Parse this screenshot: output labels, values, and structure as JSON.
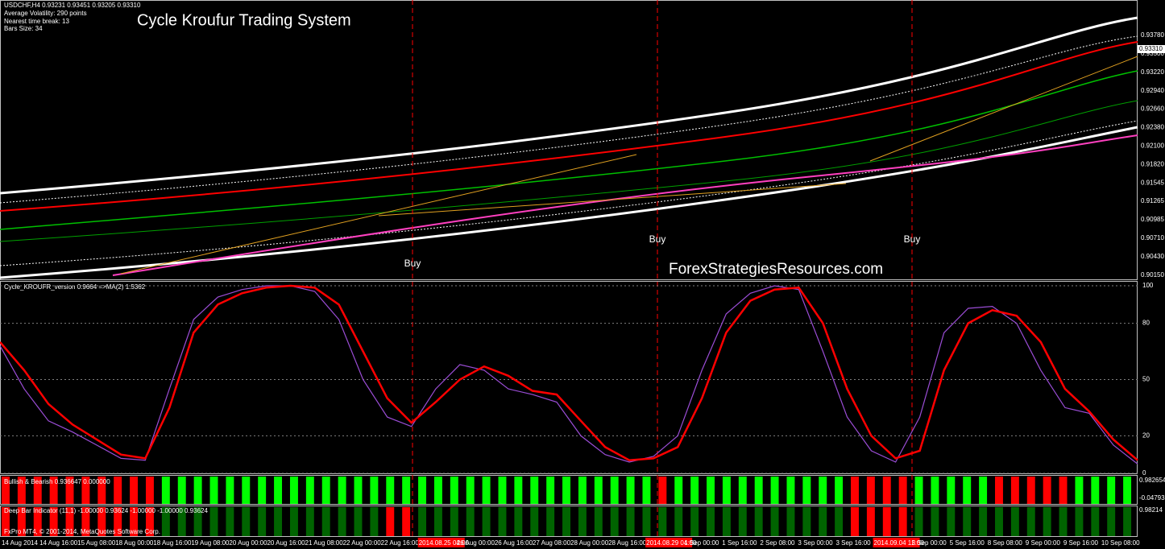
{
  "header": {
    "symbol": "USDCHF,H4  0.93231  0.93451  0.93205  0.93310",
    "info_lines": [
      "Average Volatility: 290 points",
      "Nearest time break: 13",
      "Bars Size: 34"
    ],
    "title": "Cycle Kroufur Trading System",
    "watermark": "ForexStrategiesResources.com",
    "signals": [
      "Buy",
      "Buy",
      "Buy"
    ]
  },
  "price_axis": {
    "labels": [
      "0.93780",
      "0.93500",
      "0.93220",
      "0.92940",
      "0.92660",
      "0.92380",
      "0.92100",
      "0.91820",
      "0.91545",
      "0.91265",
      "0.90985",
      "0.90710",
      "0.90430",
      "0.90150"
    ],
    "current": "0.93310"
  },
  "chart_data": {
    "type": "line",
    "title": "Cycle_KROUFR_version 0.9664  =>MA(2) 1.5362",
    "ylim": [
      0,
      100
    ],
    "yticks": [
      100,
      80,
      50,
      20,
      0
    ],
    "grid": true,
    "series": [
      {
        "color": "#9b4dd6",
        "values": [
          68,
          45,
          28,
          22,
          15,
          8,
          7,
          45,
          82,
          94,
          98,
          100,
          100,
          97,
          82,
          50,
          30,
          25,
          45,
          58,
          55,
          45,
          42,
          38,
          20,
          10,
          6,
          9,
          20,
          55,
          85,
          96,
          100,
          98,
          65,
          30,
          12,
          6,
          30,
          75,
          88,
          89,
          80,
          55,
          35,
          32,
          15,
          5
        ]
      },
      {
        "color": "#ff0000",
        "values": [
          70,
          55,
          37,
          26,
          18,
          10,
          8,
          35,
          75,
          90,
          96,
          99,
          100,
          99,
          90,
          65,
          40,
          27,
          38,
          50,
          57,
          52,
          44,
          42,
          28,
          14,
          7,
          8,
          14,
          40,
          75,
          92,
          98,
          99,
          80,
          45,
          20,
          8,
          12,
          55,
          80,
          87,
          84,
          70,
          45,
          33,
          18,
          7
        ]
      }
    ]
  },
  "bull_bear": {
    "label": "Bullish & Bearish 0.936647 0.000000",
    "axis": [
      "0.982654",
      "-0.04793"
    ],
    "bars": [
      "#ff0000",
      "#ff0000",
      "#ff0000",
      "#ff0000",
      "#ff0000",
      "#ff0000",
      "#ff0000",
      "#ff0000",
      "#ff0000",
      "#ff0000",
      "#00ff00",
      "#00ff00",
      "#00ff00",
      "#00ff00",
      "#00ff00",
      "#00ff00",
      "#00ff00",
      "#00ff00",
      "#00ff00",
      "#00ff00",
      "#00ff00",
      "#00ff00",
      "#00ff00",
      "#00ff00",
      "#00ff00",
      "#00ff00",
      "#00ff00",
      "#00ff00",
      "#00ff00",
      "#00ff00",
      "#00ff00",
      "#00ff00",
      "#00ff00",
      "#00ff00",
      "#00ff00",
      "#00ff00",
      "#00ff00",
      "#00ff00",
      "#00ff00",
      "#00ff00",
      "#00ff00",
      "#ff0000",
      "#00ff00",
      "#00ff00",
      "#00ff00",
      "#00ff00",
      "#00ff00",
      "#00ff00",
      "#00ff00",
      "#00ff00",
      "#00ff00",
      "#00ff00",
      "#00ff00",
      "#ff0000",
      "#ff0000",
      "#ff0000",
      "#ff0000",
      "#00ff00",
      "#00ff00",
      "#00ff00",
      "#00ff00",
      "#00ff00",
      "#ff0000",
      "#ff0000",
      "#ff0000",
      "#ff0000",
      "#ff0000",
      "#00ff00",
      "#00ff00",
      "#00ff00",
      "#00ff00"
    ]
  },
  "deep_bar": {
    "label": "Deep Bar Indicator (11,1) -1.00000 0.93624 -1.00000 -1.00000 0.93624",
    "axis": [
      "0.98214"
    ],
    "bars": [
      "#ff0000",
      "#ff0000",
      "#ff0000",
      "#ff0000",
      "#ff0000",
      "#ff0000",
      "#ff0000",
      "#ff0000",
      "#ff0000",
      "#ff0000",
      "#006400",
      "#006400",
      "#006400",
      "#006400",
      "#006400",
      "#006400",
      "#006400",
      "#006400",
      "#006400",
      "#006400",
      "#006400",
      "#006400",
      "#006400",
      "#006400",
      "#ff0000",
      "#ff0000",
      "#006400",
      "#006400",
      "#006400",
      "#006400",
      "#006400",
      "#006400",
      "#006400",
      "#006400",
      "#006400",
      "#006400",
      "#006400",
      "#006400",
      "#006400",
      "#006400",
      "#006400",
      "#006400",
      "#006400",
      "#006400",
      "#006400",
      "#006400",
      "#006400",
      "#006400",
      "#006400",
      "#006400",
      "#006400",
      "#006400",
      "#006400",
      "#ff0000",
      "#ff0000",
      "#ff0000",
      "#ff0000",
      "#006400",
      "#006400",
      "#006400",
      "#006400",
      "#006400",
      "#006400",
      "#006400",
      "#006400",
      "#006400",
      "#006400",
      "#006400",
      "#006400",
      "#006400",
      "#006400"
    ]
  },
  "footer": {
    "copyright": "FxPro MT4, © 2001-2014, MetaQuotes Software Corp.",
    "time_labels": [
      "14 Aug 2014",
      "14 Aug 16:00",
      "15 Aug 08:00",
      "18 Aug 00:00",
      "18 Aug 16:00",
      "19 Aug 08:00",
      "20 Aug 00:00",
      "20 Aug 16:00",
      "21 Aug 08:00",
      "22 Aug 00:00",
      "22 Aug 16:00",
      "2014.08.25 04:00",
      "26 Aug 00:00",
      "26 Aug 16:00",
      "27 Aug 08:00",
      "28 Aug 00:00",
      "28 Aug 16:00",
      "2014.08.29 04:00",
      "1 Sep 00:00",
      "1 Sep 16:00",
      "2 Sep 08:00",
      "3 Sep 00:00",
      "3 Sep 16:00",
      "2014.09.04 12:00",
      "5 Sep 00:00",
      "5 Sep 16:00",
      "8 Sep 08:00",
      "9 Sep 00:00",
      "9 Sep 16:00",
      "10 Sep 08:00"
    ]
  }
}
